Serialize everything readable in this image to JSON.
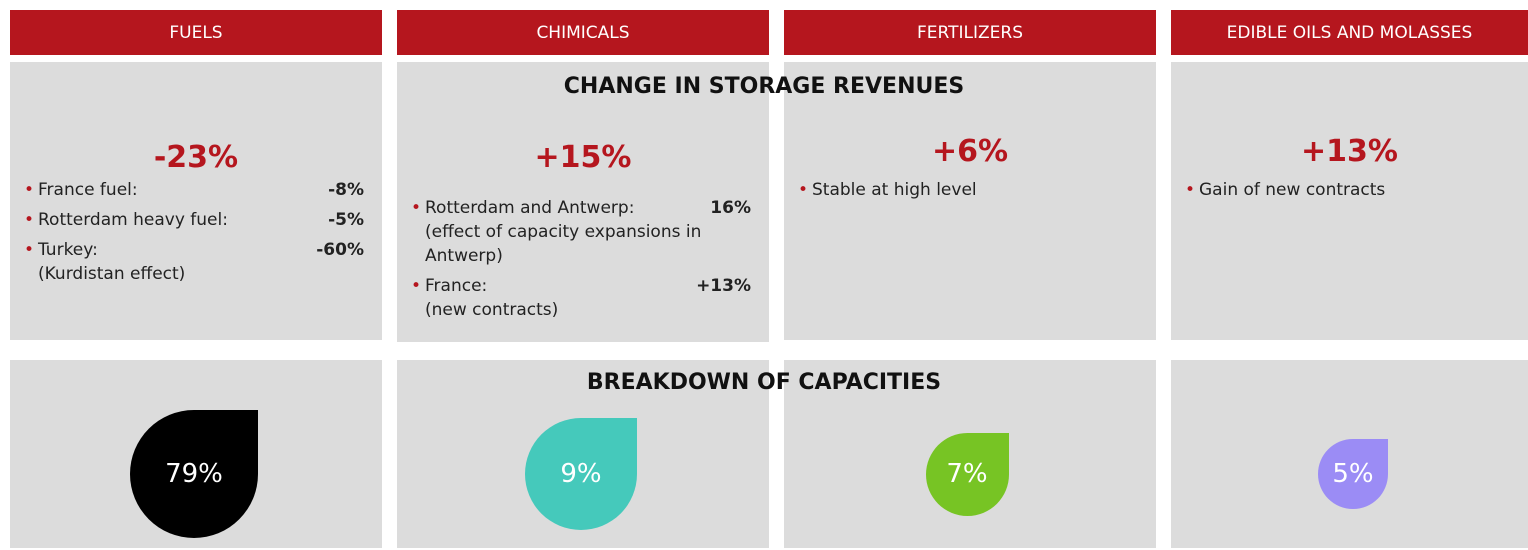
{
  "section_titles": {
    "revenues": "CHANGE IN STORAGE REVENUES",
    "capacities": "BREAKDOWN OF CAPACITIES"
  },
  "columns": [
    {
      "category": "FUELS",
      "change": "-23%",
      "items": [
        {
          "label": "France fuel:",
          "value": "-8%"
        },
        {
          "label": "Rotterdam heavy fuel:",
          "value": "-5%"
        },
        {
          "label": "Turkey:",
          "value": "-60%",
          "note": "(Kurdistan effect)"
        }
      ],
      "capacity": "79%"
    },
    {
      "category": "CHIMICALS",
      "change": "+15%",
      "items": [
        {
          "label": "Rotterdam and Antwerp:",
          "value": "16%",
          "note": "(effect of capacity expansions in Antwerp)"
        },
        {
          "label": "France:",
          "value": "+13%",
          "note": "(new contracts)"
        }
      ],
      "capacity": "9%"
    },
    {
      "category": "FERTILIZERS",
      "change": "+6%",
      "items": [
        {
          "label": "Stable at high level"
        }
      ],
      "capacity": "7%"
    },
    {
      "category": "EDIBLE OILS AND MOLASSES",
      "change": "+13%",
      "items": [
        {
          "label": "Gain of new contracts"
        }
      ],
      "capacity": "5%"
    }
  ]
}
